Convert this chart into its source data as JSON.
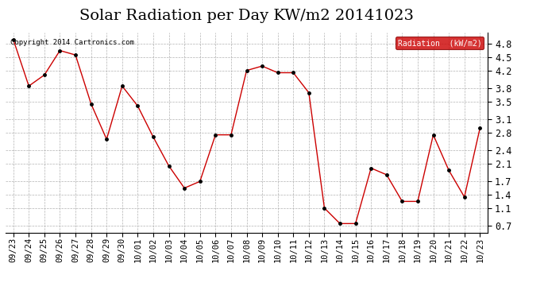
{
  "title": "Solar Radiation per Day KW/m2 20141023",
  "copyright_text": "Copyright 2014 Cartronics.com",
  "legend_label": "Radiation  (kW/m2)",
  "x_labels": [
    "09/23",
    "09/24",
    "09/25",
    "09/26",
    "09/27",
    "09/28",
    "09/29",
    "09/30",
    "10/01",
    "10/02",
    "10/03",
    "10/04",
    "10/05",
    "10/06",
    "10/07",
    "10/08",
    "10/09",
    "10/10",
    "10/11",
    "10/12",
    "10/13",
    "10/14",
    "10/15",
    "10/16",
    "10/17",
    "10/18",
    "10/19",
    "10/20",
    "10/21",
    "10/22",
    "10/23"
  ],
  "y_values": [
    4.9,
    3.85,
    4.1,
    4.65,
    4.55,
    3.45,
    2.65,
    3.85,
    3.4,
    2.7,
    2.05,
    1.55,
    1.7,
    2.75,
    2.75,
    4.2,
    4.3,
    4.15,
    4.15,
    3.7,
    1.1,
    0.75,
    0.75,
    2.0,
    1.85,
    1.25,
    1.25,
    2.75,
    1.95,
    1.35,
    2.9
  ],
  "line_color": "#cc0000",
  "marker_color": "#000000",
  "background_color": "#ffffff",
  "plot_bg_color": "#ffffff",
  "grid_color": "#aaaaaa",
  "y_ticks": [
    0.7,
    1.1,
    1.4,
    1.7,
    2.1,
    2.4,
    2.8,
    3.1,
    3.5,
    3.8,
    4.2,
    4.5,
    4.8
  ],
  "ylim": [
    0.55,
    5.05
  ],
  "legend_bg": "#cc0000",
  "legend_text_color": "#ffffff",
  "title_fontsize": 14,
  "tick_fontsize": 7.5,
  "ytick_fontsize": 8.5
}
